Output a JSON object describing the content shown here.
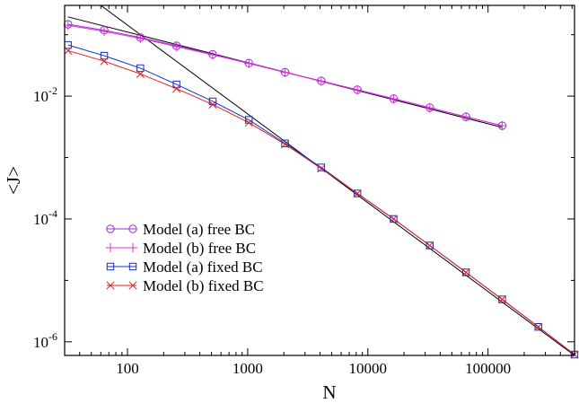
{
  "chart_data": {
    "type": "line",
    "xlabel": "N",
    "ylabel": "<J>",
    "x_scale": "log",
    "y_scale": "log",
    "xlim": [
      30,
      524288
    ],
    "ylim": [
      6e-07,
      0.3
    ],
    "x_ticks": [
      {
        "value": 100,
        "label": "100"
      },
      {
        "value": 1000,
        "label": "1000"
      },
      {
        "value": 10000,
        "label": "10000"
      },
      {
        "value": 100000,
        "label": "100000"
      }
    ],
    "y_ticks": [
      {
        "value": 0.01,
        "base": "10",
        "exp": "-2"
      },
      {
        "value": 0.0001,
        "base": "10",
        "exp": "-4"
      },
      {
        "value": 1e-06,
        "base": "10",
        "exp": "-6"
      }
    ],
    "grid": false,
    "legend_position": "lower-left",
    "series": [
      {
        "name": "Model (a) free BC",
        "color": "#9b30d0",
        "marker": "circle",
        "x": [
          32,
          64,
          128,
          256,
          512,
          1024,
          2048,
          4096,
          8192,
          16384,
          32768,
          65536,
          131072
        ],
        "y": [
          0.148,
          0.118,
          0.09,
          0.066,
          0.048,
          0.0345,
          0.0245,
          0.0177,
          0.0127,
          0.0091,
          0.0065,
          0.0046,
          0.0033
        ]
      },
      {
        "name": "Model (b) free BC",
        "color": "#e030e0",
        "marker": "plus",
        "x": [
          32,
          64,
          128,
          256,
          512,
          1024,
          2048,
          4096,
          8192,
          16384,
          32768,
          65536,
          131072
        ],
        "y": [
          0.142,
          0.113,
          0.087,
          0.064,
          0.047,
          0.034,
          0.0243,
          0.0175,
          0.0126,
          0.009,
          0.0064,
          0.0046,
          0.0033
        ]
      },
      {
        "name": "Model (a) fixed BC",
        "color": "#1030d0",
        "marker": "square",
        "x": [
          32,
          64,
          128,
          256,
          512,
          1024,
          2048,
          4096,
          8192,
          16384,
          32768,
          65536,
          131072,
          262144,
          524288
        ],
        "y": [
          0.068,
          0.0455,
          0.0285,
          0.0155,
          0.0082,
          0.0041,
          0.0017,
          0.00069,
          0.00026,
          0.0001,
          3.7e-05,
          1.35e-05,
          4.9e-06,
          1.75e-06,
          6.2e-07
        ]
      },
      {
        "name": "Model (b) fixed BC",
        "color": "#e02020",
        "marker": "x",
        "x": [
          32,
          64,
          128,
          256,
          512,
          1024,
          2048,
          4096,
          8192,
          16384,
          32768,
          65536,
          131072,
          262144,
          524288
        ],
        "y": [
          0.055,
          0.037,
          0.023,
          0.0132,
          0.0073,
          0.0037,
          0.00165,
          0.00066,
          0.00026,
          0.0001,
          3.7e-05,
          1.35e-05,
          4.9e-06,
          1.75e-06,
          6.2e-07
        ]
      }
    ],
    "fit_lines": [
      {
        "x": [
          32,
          131072
        ],
        "y": [
          0.195,
          0.0031
        ],
        "color": "#000000"
      },
      {
        "x": [
          60,
          524288
        ],
        "y": [
          0.3,
          6e-07
        ],
        "color": "#000000"
      }
    ]
  }
}
